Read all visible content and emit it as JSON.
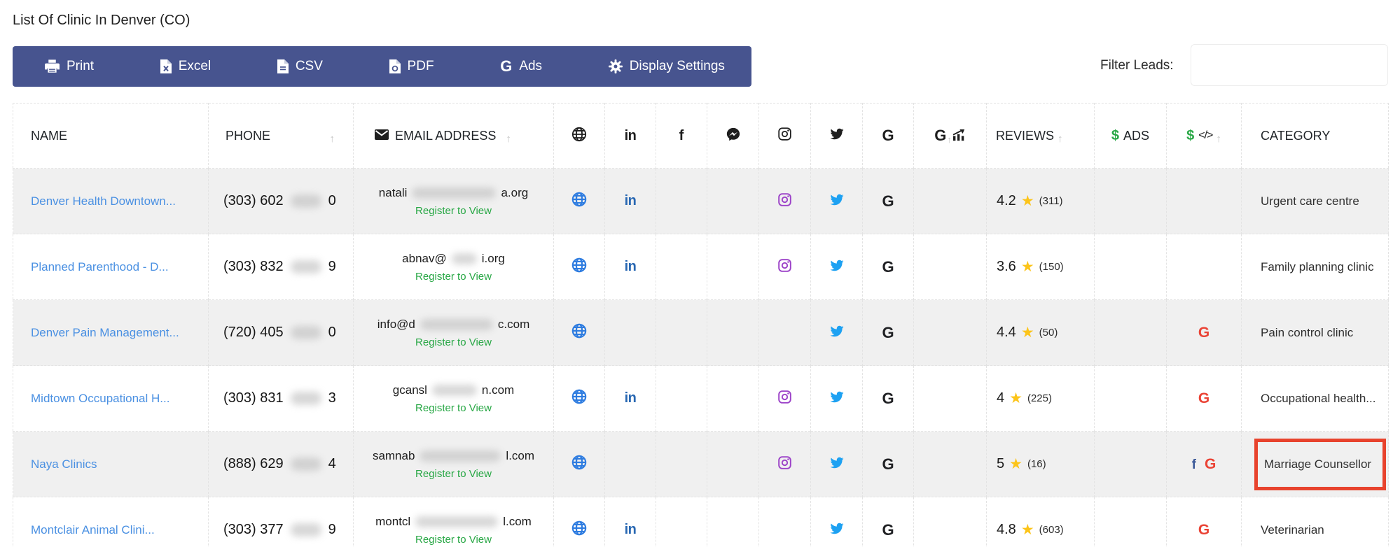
{
  "page": {
    "title": "List Of Clinic In Denver (CO)"
  },
  "toolbar": {
    "buttons": [
      {
        "label": "Print",
        "icon": "printer-icon"
      },
      {
        "label": "Excel",
        "icon": "file-excel-icon"
      },
      {
        "label": "CSV",
        "icon": "file-csv-icon"
      },
      {
        "label": "PDF",
        "icon": "file-pdf-icon"
      },
      {
        "label": "Ads",
        "icon": "google-g-icon"
      },
      {
        "label": "Display Settings",
        "icon": "gear-icon"
      }
    ]
  },
  "filter": {
    "label": "Filter Leads:",
    "value": "",
    "placeholder": ""
  },
  "table": {
    "headers": {
      "name": "NAME",
      "phone": "PHONE",
      "email": "EMAIL ADDRESS",
      "reviews": "REVIEWS",
      "ads_dollar": "$",
      "ads": "ADS",
      "code_dollar": "$",
      "category": "CATEGORY",
      "icon_columns": [
        "website",
        "linkedin",
        "facebook",
        "messenger",
        "instagram",
        "twitter",
        "google",
        "google-ads"
      ]
    },
    "register_label": "Register to View",
    "rows": [
      {
        "name": "Denver Health Downtown...",
        "phone_prefix": "(303) 602",
        "phone_suffix": "0",
        "email_prefix": "natali",
        "email_suffix": "a.org",
        "socials": [
          "website",
          "linkedin",
          "instagram",
          "twitter",
          "google"
        ],
        "reviews_rating": "4.2",
        "reviews_count": "(311)",
        "ads": "",
        "code_icons": [],
        "category": "Urgent care centre",
        "highlighted": false
      },
      {
        "name": "Planned Parenthood - D...",
        "phone_prefix": "(303) 832",
        "phone_suffix": "9",
        "email_prefix": "abnav@",
        "email_suffix": "i.org",
        "socials": [
          "website",
          "linkedin",
          "instagram",
          "twitter",
          "google"
        ],
        "reviews_rating": "3.6",
        "reviews_count": "(150)",
        "ads": "",
        "code_icons": [],
        "category": "Family planning clinic",
        "highlighted": false
      },
      {
        "name": "Denver Pain Management...",
        "phone_prefix": "(720) 405",
        "phone_suffix": "0",
        "email_prefix": "info@d",
        "email_suffix": "c.com",
        "socials": [
          "website",
          "twitter",
          "google"
        ],
        "reviews_rating": "4.4",
        "reviews_count": "(50)",
        "ads": "",
        "code_icons": [
          "google"
        ],
        "category": "Pain control clinic",
        "highlighted": false
      },
      {
        "name": "Midtown Occupational H...",
        "phone_prefix": "(303) 831",
        "phone_suffix": "3",
        "email_prefix": "gcansl",
        "email_suffix": "n.com",
        "socials": [
          "website",
          "linkedin",
          "instagram",
          "twitter",
          "google"
        ],
        "reviews_rating": "4",
        "reviews_count": "(225)",
        "ads": "",
        "code_icons": [
          "google"
        ],
        "category": "Occupational health...",
        "highlighted": false
      },
      {
        "name": "Naya Clinics",
        "phone_prefix": "(888) 629",
        "phone_suffix": "4",
        "email_prefix": "samnab",
        "email_suffix": "l.com",
        "socials": [
          "website",
          "instagram",
          "twitter",
          "google"
        ],
        "reviews_rating": "5",
        "reviews_count": "(16)",
        "ads": "",
        "code_icons": [
          "facebook",
          "google"
        ],
        "category": "Marriage Counsellor",
        "highlighted": true
      },
      {
        "name": "Montclair Animal Clini...",
        "phone_prefix": "(303) 377",
        "phone_suffix": "9",
        "email_prefix": "montcl",
        "email_suffix": "l.com",
        "socials": [
          "website",
          "linkedin",
          "twitter",
          "google"
        ],
        "reviews_rating": "4.8",
        "reviews_count": "(603)",
        "ads": "",
        "code_icons": [
          "google"
        ],
        "category": "Veterinarian",
        "highlighted": false
      }
    ]
  },
  "colors": {
    "toolbar_bg": "#47548f",
    "link_blue": "#4a90e2",
    "register_green": "#28a745",
    "highlight_red": "#e8432d",
    "star_yellow": "#fcc419",
    "globe_blue": "#2e7ce0",
    "linkedin_blue": "#2867b2",
    "twitter_blue": "#1da1f2",
    "instagram_purple": "#9c42c8",
    "facebook_blue": "#3b5998",
    "google_red": "#ea4335",
    "row_alt_gray": "#f0f0f0"
  }
}
